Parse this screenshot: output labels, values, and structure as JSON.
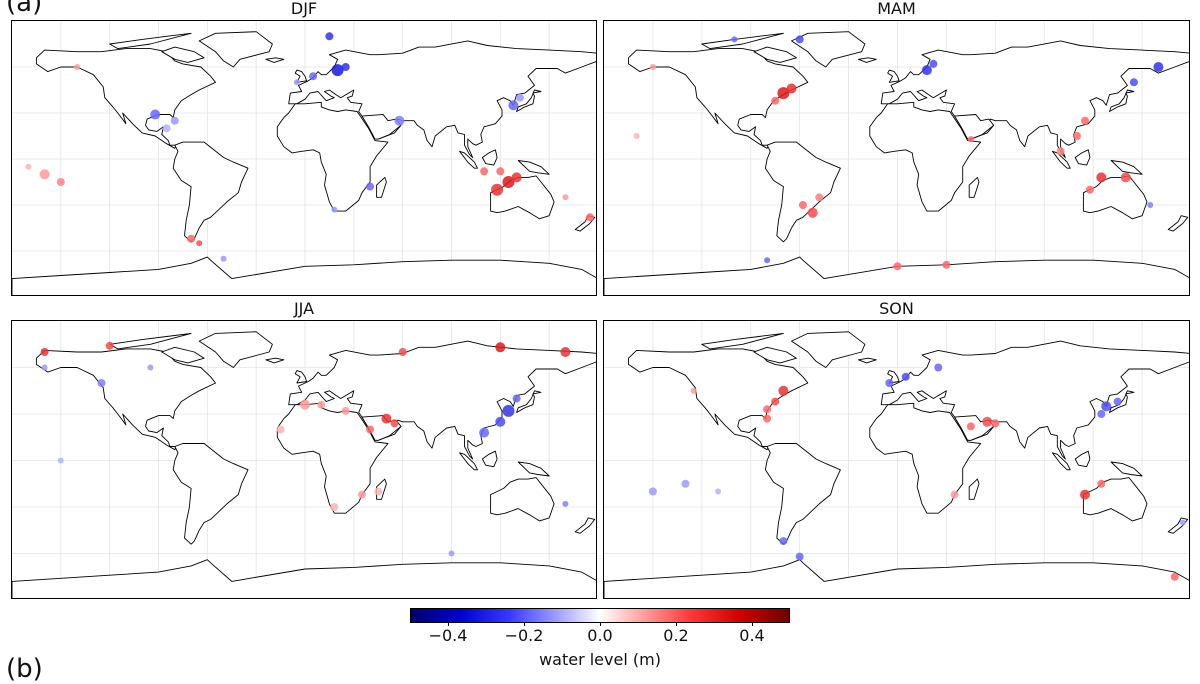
{
  "figure": {
    "panel_label_a": "(a)",
    "panel_label_b": "(b)"
  },
  "panels": [
    {
      "title": "DJF"
    },
    {
      "title": "MAM"
    },
    {
      "title": "JJA"
    },
    {
      "title": "SON"
    }
  ],
  "colorbar": {
    "label": "water level (m)",
    "ticks": [
      "−0.4",
      "−0.2",
      "0.0",
      "0.2",
      "0.4"
    ],
    "range": [
      -0.5,
      0.5
    ],
    "colormap": "seismic",
    "colors": {
      "negative": "#0000d0",
      "zero": "#ffffff",
      "positive": "#d00000"
    }
  },
  "map": {
    "projection": "plate-carree",
    "gridlines": true,
    "coastlines": true
  }
}
